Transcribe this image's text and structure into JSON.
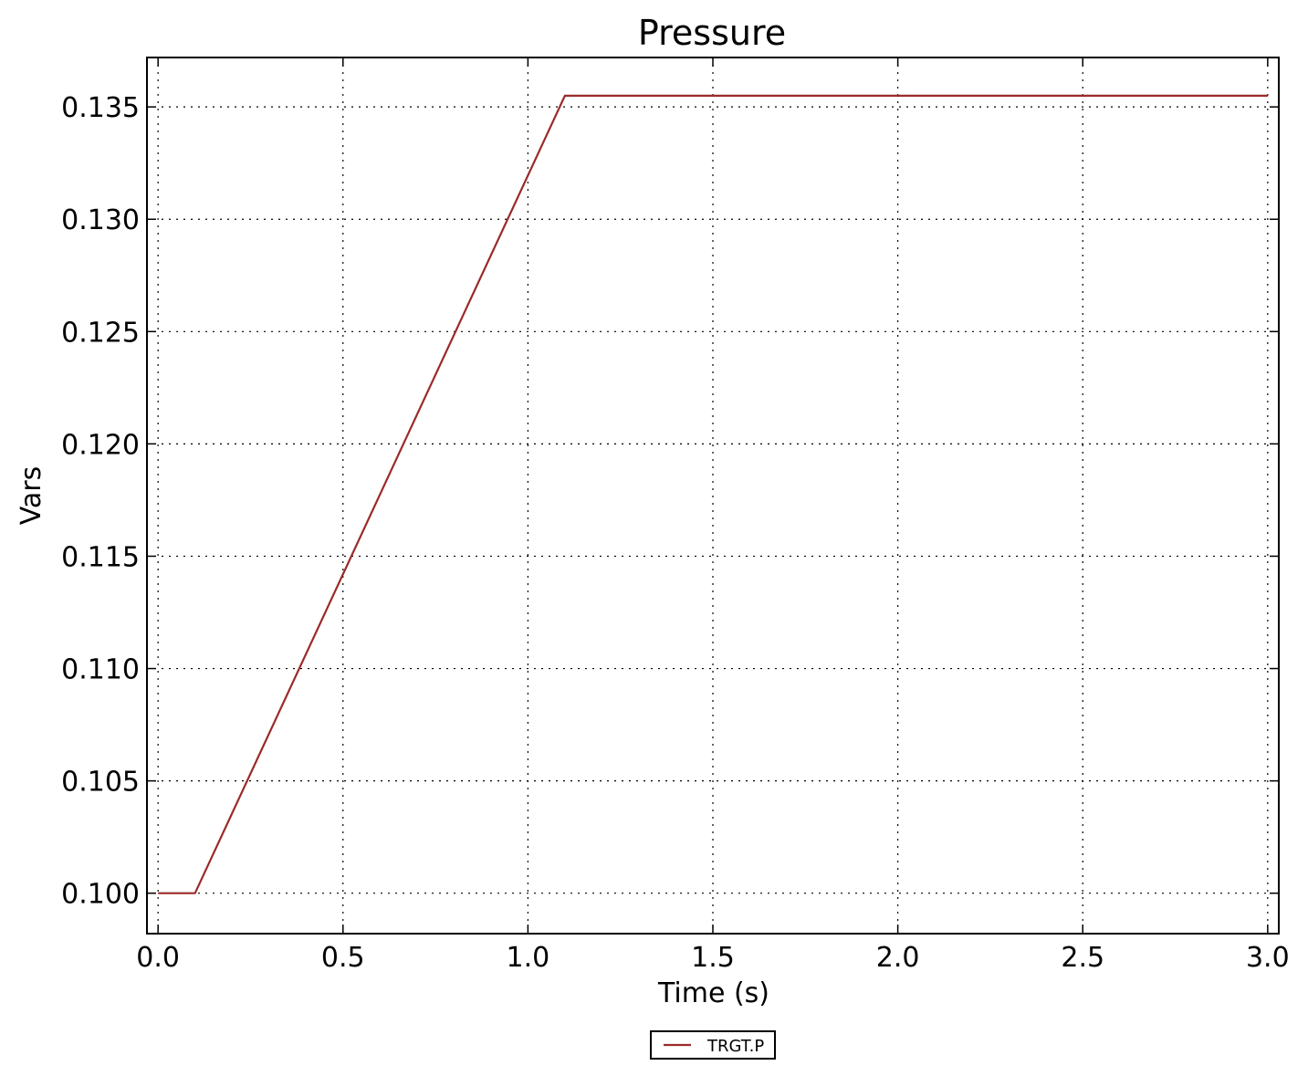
{
  "chart_data": {
    "type": "line",
    "title": "Pressure",
    "xlabel": "Time (s)",
    "ylabel": "Vars",
    "xlim": [
      -0.03,
      3.03
    ],
    "ylim": [
      0.0982,
      0.1372
    ],
    "xticks": [
      0.0,
      0.5,
      1.0,
      1.5,
      2.0,
      2.5,
      3.0
    ],
    "xtick_labels": [
      "0.0",
      "0.5",
      "1.0",
      "1.5",
      "2.0",
      "2.5",
      "3.0"
    ],
    "yticks": [
      0.1,
      0.105,
      0.11,
      0.115,
      0.12,
      0.125,
      0.13,
      0.135
    ],
    "ytick_labels": [
      "0.100",
      "0.105",
      "0.110",
      "0.115",
      "0.120",
      "0.125",
      "0.130",
      "0.135"
    ],
    "grid": true,
    "legend_position": "bottom-center",
    "series": [
      {
        "name": "TRGT.P",
        "color": "#9b2a2a",
        "x": [
          0.0,
          0.1,
          1.1,
          3.0
        ],
        "y": [
          0.1,
          0.1,
          0.1355,
          0.1355
        ]
      }
    ]
  }
}
